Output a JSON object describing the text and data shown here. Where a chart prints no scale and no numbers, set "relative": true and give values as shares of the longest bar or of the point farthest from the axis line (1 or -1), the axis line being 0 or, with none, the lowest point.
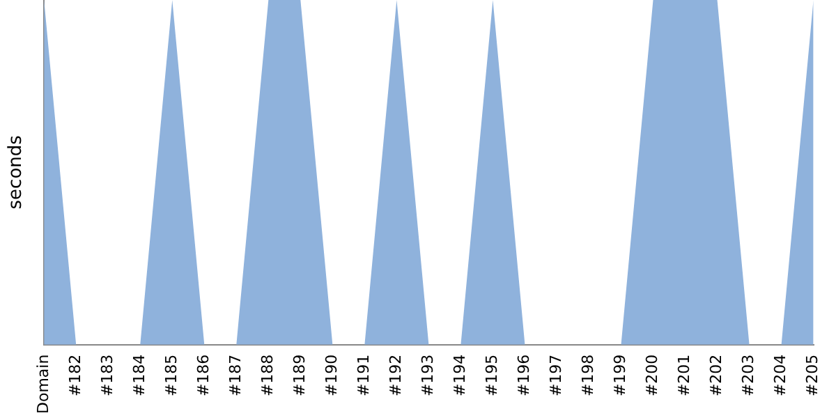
{
  "chart_data": {
    "type": "area",
    "ylabel": "seconds",
    "relative": true,
    "grid": false,
    "legend": false,
    "categories": [
      "Domain",
      "#182",
      "#183",
      "#184",
      "#185",
      "#186",
      "#187",
      "#188",
      "#189",
      "#190",
      "#191",
      "#192",
      "#193",
      "#194",
      "#195",
      "#196",
      "#197",
      "#198",
      "#199",
      "#200",
      "#201",
      "#202",
      "#203",
      "#204",
      "#205"
    ],
    "series": [
      {
        "color": "#8fb2dc",
        "values": [
          1,
          0,
          0,
          0,
          1,
          0,
          0,
          1,
          1,
          0,
          0,
          1,
          0,
          0,
          1,
          0,
          0,
          0,
          0,
          1,
          1,
          1,
          0,
          0,
          1
        ]
      }
    ]
  }
}
